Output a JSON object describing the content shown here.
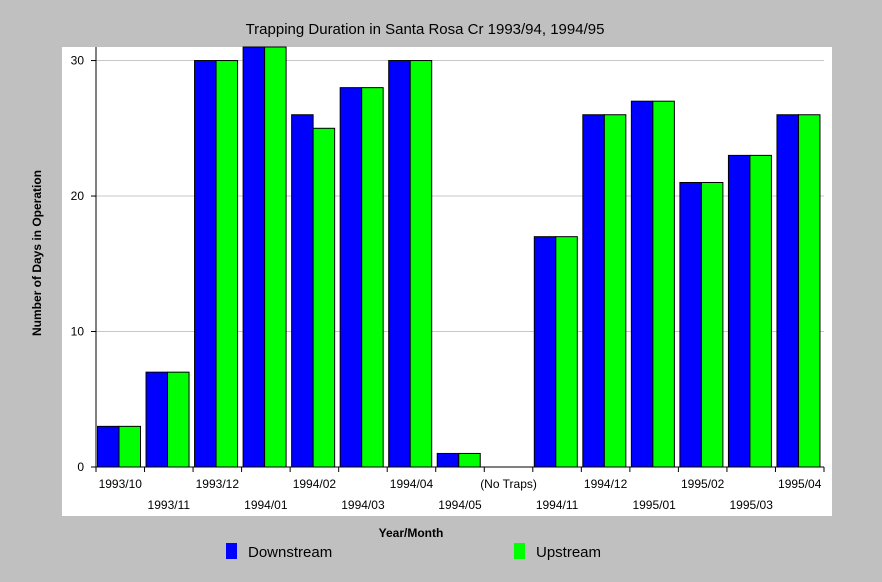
{
  "chart_data": {
    "type": "bar",
    "title": "Trapping Duration in Santa Rosa Cr 1993/94, 1994/95",
    "xlabel": "Year/Month",
    "ylabel": "Number of Days in Operation",
    "ylim": [
      0,
      31
    ],
    "yticks": [
      0,
      10,
      20,
      30
    ],
    "grid": true,
    "legend_position": "bottom",
    "categories": [
      "1993/10",
      "1993/11",
      "1993/12",
      "1994/01",
      "1994/02",
      "1994/03",
      "1994/04",
      "1994/05",
      "(No Traps)",
      "1994/11",
      "1994/12",
      "1995/01",
      "1995/02",
      "1995/03",
      "1995/04"
    ],
    "series": [
      {
        "name": "Downstream",
        "color": "#0000ff",
        "values": [
          3,
          7,
          30,
          31,
          26,
          28,
          30,
          1,
          0,
          17,
          26,
          27,
          21,
          23,
          26
        ]
      },
      {
        "name": "Upstream",
        "color": "#00ff00",
        "values": [
          3,
          7,
          30,
          31,
          25,
          28,
          30,
          1,
          0,
          17,
          26,
          27,
          21,
          23,
          26
        ]
      }
    ]
  }
}
